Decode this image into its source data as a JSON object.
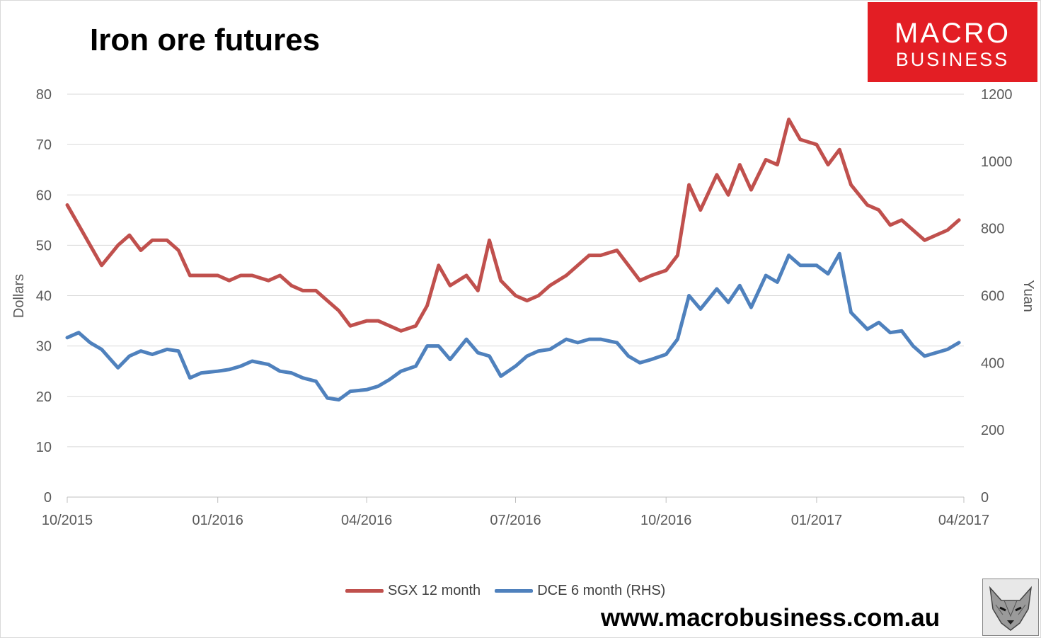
{
  "title": "Iron ore futures",
  "logo": {
    "line1": "MACRO",
    "line2": "BUSINESS"
  },
  "website": "www.macrobusiness.com.au",
  "colors": {
    "sgx": "#c0504d",
    "dce": "#4f81bd",
    "logo_bg": "#e31e24"
  },
  "chart_data": {
    "type": "line",
    "ylabel": "Dollars",
    "y2label": "Yuan",
    "ylim": [
      0,
      80
    ],
    "y2lim": [
      0,
      1200
    ],
    "yticks": [
      "0",
      "10",
      "20",
      "30",
      "40",
      "50",
      "60",
      "70",
      "80"
    ],
    "y2ticks": [
      "0",
      "200",
      "400",
      "600",
      "800",
      "1000",
      "1200"
    ],
    "xticks": [
      "10/2015",
      "01/2016",
      "04/2016",
      "07/2016",
      "10/2016",
      "01/2017",
      "04/2017"
    ],
    "grid": true,
    "legend_position": "bottom",
    "series": [
      {
        "name": "SGX 12 month",
        "axis": "left",
        "color": "#c0504d",
        "x": [
          "2015-10-01",
          "2015-10-08",
          "2015-10-15",
          "2015-10-22",
          "2015-11-01",
          "2015-11-08",
          "2015-11-15",
          "2015-11-22",
          "2015-12-01",
          "2015-12-08",
          "2015-12-15",
          "2015-12-22",
          "2016-01-01",
          "2016-01-08",
          "2016-01-15",
          "2016-01-22",
          "2016-02-01",
          "2016-02-08",
          "2016-02-15",
          "2016-02-22",
          "2016-03-01",
          "2016-03-08",
          "2016-03-15",
          "2016-03-22",
          "2016-04-01",
          "2016-04-08",
          "2016-04-15",
          "2016-04-22",
          "2016-05-01",
          "2016-05-08",
          "2016-05-15",
          "2016-05-22",
          "2016-06-01",
          "2016-06-08",
          "2016-06-15",
          "2016-06-22",
          "2016-07-01",
          "2016-07-08",
          "2016-07-15",
          "2016-07-22",
          "2016-08-01",
          "2016-08-08",
          "2016-08-15",
          "2016-08-22",
          "2016-09-01",
          "2016-09-08",
          "2016-09-15",
          "2016-09-22",
          "2016-10-01",
          "2016-10-08",
          "2016-10-15",
          "2016-10-22",
          "2016-11-01",
          "2016-11-08",
          "2016-11-15",
          "2016-11-22",
          "2016-12-01",
          "2016-12-08",
          "2016-12-15",
          "2016-12-22",
          "2017-01-01",
          "2017-01-08",
          "2017-01-15",
          "2017-01-22",
          "2017-02-01",
          "2017-02-08",
          "2017-02-15",
          "2017-02-22",
          "2017-03-01",
          "2017-03-08",
          "2017-03-15",
          "2017-03-22",
          "2017-03-29"
        ],
        "y": [
          58,
          54,
          50,
          46,
          50,
          52,
          49,
          51,
          51,
          49,
          44,
          44,
          44,
          43,
          44,
          44,
          43,
          44,
          42,
          41,
          41,
          39,
          37,
          34,
          35,
          35,
          34,
          33,
          34,
          38,
          46,
          42,
          44,
          41,
          51,
          43,
          40,
          39,
          40,
          42,
          44,
          46,
          48,
          48,
          49,
          46,
          43,
          44,
          45,
          48,
          62,
          57,
          64,
          60,
          66,
          61,
          67,
          66,
          75,
          71,
          70,
          66,
          69,
          62,
          58,
          57,
          54,
          55,
          53,
          51,
          52,
          53,
          55
        ]
      },
      {
        "name": "DCE 6 month (RHS)",
        "axis": "right",
        "color": "#4f81bd",
        "x": [
          "2015-10-01",
          "2015-10-08",
          "2015-10-15",
          "2015-10-22",
          "2015-11-01",
          "2015-11-08",
          "2015-11-15",
          "2015-11-22",
          "2015-12-01",
          "2015-12-08",
          "2015-12-15",
          "2015-12-22",
          "2016-01-01",
          "2016-01-08",
          "2016-01-15",
          "2016-01-22",
          "2016-02-01",
          "2016-02-08",
          "2016-02-15",
          "2016-02-22",
          "2016-03-01",
          "2016-03-08",
          "2016-03-15",
          "2016-03-22",
          "2016-04-01",
          "2016-04-08",
          "2016-04-15",
          "2016-04-22",
          "2016-05-01",
          "2016-05-08",
          "2016-05-15",
          "2016-05-22",
          "2016-06-01",
          "2016-06-08",
          "2016-06-15",
          "2016-06-22",
          "2016-07-01",
          "2016-07-08",
          "2016-07-15",
          "2016-07-22",
          "2016-08-01",
          "2016-08-08",
          "2016-08-15",
          "2016-08-22",
          "2016-09-01",
          "2016-09-08",
          "2016-09-15",
          "2016-09-22",
          "2016-10-01",
          "2016-10-08",
          "2016-10-15",
          "2016-10-22",
          "2016-11-01",
          "2016-11-08",
          "2016-11-15",
          "2016-11-22",
          "2016-12-01",
          "2016-12-08",
          "2016-12-15",
          "2016-12-22",
          "2017-01-01",
          "2017-01-08",
          "2017-01-15",
          "2017-01-22",
          "2017-02-01",
          "2017-02-08",
          "2017-02-15",
          "2017-02-22",
          "2017-03-01",
          "2017-03-08",
          "2017-03-15",
          "2017-03-22",
          "2017-03-29"
        ],
        "y": [
          475,
          490,
          460,
          440,
          385,
          420,
          435,
          425,
          440,
          435,
          355,
          370,
          375,
          380,
          390,
          405,
          395,
          375,
          370,
          355,
          345,
          295,
          290,
          315,
          320,
          330,
          350,
          375,
          390,
          450,
          450,
          410,
          470,
          430,
          420,
          360,
          390,
          420,
          435,
          440,
          470,
          460,
          470,
          470,
          460,
          420,
          400,
          410,
          425,
          470,
          600,
          560,
          620,
          580,
          630,
          565,
          660,
          640,
          720,
          690,
          690,
          665,
          725,
          550,
          500,
          520,
          490,
          495,
          450,
          420,
          430,
          440,
          460
        ]
      }
    ]
  }
}
